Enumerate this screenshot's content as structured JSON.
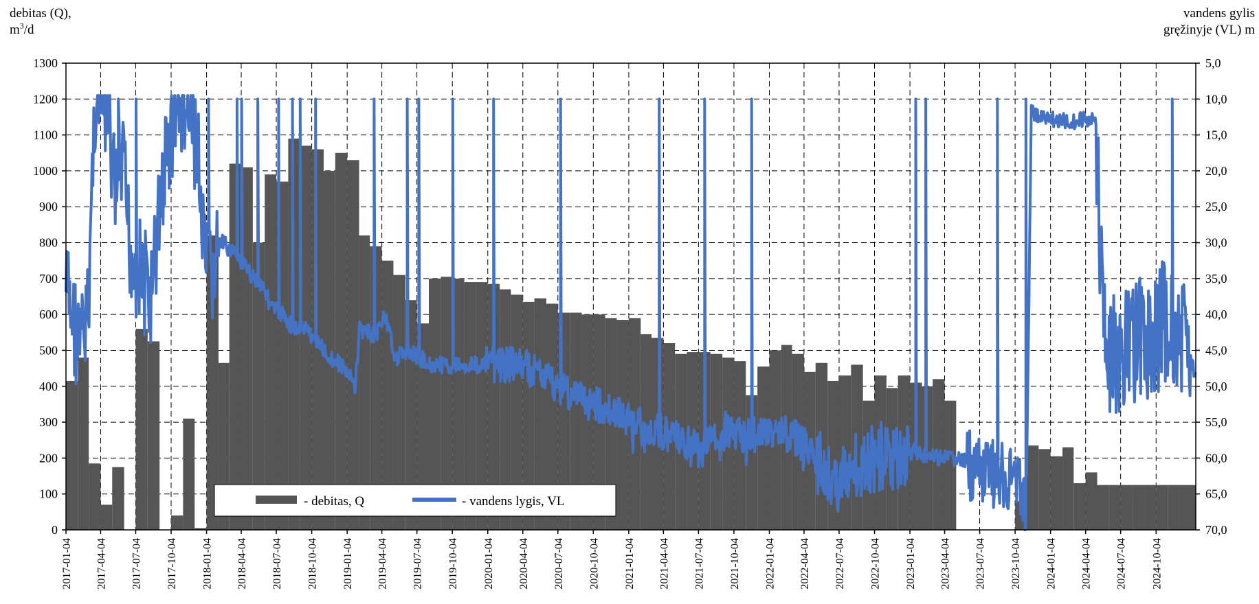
{
  "y_left_title_line1": "debitas (Q),",
  "y_left_title_unit_base": "m",
  "y_left_title_unit_sup": "3",
  "y_left_title_unit_tail": "/d",
  "y_right_title_line1": "vandens gylis",
  "y_right_title_line2": "gręžinyje (VL) m",
  "chart_data": {
    "type": "bar",
    "title": "",
    "x_ticks": [
      "2017-01-04",
      "2017-04-04",
      "2017-07-04",
      "2017-10-04",
      "2018-01-04",
      "2018-04-04",
      "2018-07-04",
      "2018-10-04",
      "2019-01-04",
      "2019-04-04",
      "2019-07-04",
      "2019-10-04",
      "2020-01-04",
      "2020-04-04",
      "2020-07-04",
      "2020-10-04",
      "2021-01-04",
      "2021-04-04",
      "2021-07-04",
      "2021-10-04",
      "2022-01-04",
      "2022-04-04",
      "2022-07-04",
      "2022-10-04",
      "2023-01-04",
      "2023-04-04",
      "2023-07-04",
      "2023-10-04",
      "2024-01-04",
      "2024-04-04",
      "2024-07-04",
      "2024-10-04"
    ],
    "x_range": [
      "2017-01-04",
      "2025-01-15"
    ],
    "y_left": {
      "label": "debitas (Q), m3/d",
      "ylim": [
        0,
        1300
      ],
      "ticks": [
        0,
        100,
        200,
        300,
        400,
        500,
        600,
        700,
        800,
        900,
        1000,
        1100,
        1200,
        1300
      ]
    },
    "y_right": {
      "label": "vandens gylis gręžinyje (VL) m",
      "ylim": [
        5.0,
        70.0
      ],
      "inverted": true,
      "ticks": [
        "5,0",
        "10,0",
        "15,0",
        "20,0",
        "25,0",
        "30,0",
        "35,0",
        "40,0",
        "45,0",
        "50,0",
        "55,0",
        "60,0",
        "65,0",
        "70,0"
      ]
    },
    "grid": true,
    "legend_position": "bottom-left",
    "series": [
      {
        "name": "- debitas, Q",
        "kind": "bar",
        "color": "#555555",
        "start": [
          "2017-01-04",
          "2017-02-04",
          "2017-03-04",
          "2017-04-04",
          "2017-05-04",
          "2017-06-04",
          "2017-07-04",
          "2017-08-04",
          "2017-09-04",
          "2017-10-04",
          "2017-11-04",
          "2017-12-04",
          "2018-01-04",
          "2018-02-04",
          "2018-03-04",
          "2018-04-04",
          "2018-05-04",
          "2018-06-04",
          "2018-07-04",
          "2018-08-04",
          "2018-09-04",
          "2018-10-04",
          "2018-11-04",
          "2018-12-04",
          "2019-01-04",
          "2019-02-04",
          "2019-03-04",
          "2019-04-04",
          "2019-05-04",
          "2019-06-04",
          "2019-07-04",
          "2019-08-04",
          "2019-09-04",
          "2019-10-04",
          "2019-11-04",
          "2019-12-04",
          "2020-01-04",
          "2020-02-04",
          "2020-03-04",
          "2020-04-04",
          "2020-05-04",
          "2020-06-04",
          "2020-07-04",
          "2020-08-04",
          "2020-09-04",
          "2020-10-04",
          "2020-11-04",
          "2020-12-04",
          "2021-01-04",
          "2021-02-04",
          "2021-03-04",
          "2021-04-04",
          "2021-05-04",
          "2021-06-04",
          "2021-07-04",
          "2021-08-04",
          "2021-09-04",
          "2021-10-04",
          "2021-11-04",
          "2021-12-04",
          "2022-01-04",
          "2022-02-04",
          "2022-03-04",
          "2022-04-04",
          "2022-05-04",
          "2022-06-04",
          "2022-07-04",
          "2022-08-04",
          "2022-09-04",
          "2022-10-04",
          "2022-11-04",
          "2022-12-04",
          "2023-01-04",
          "2023-02-04",
          "2023-03-04",
          "2023-04-04",
          "2023-05-04",
          "2023-06-04",
          "2023-07-04",
          "2023-08-04",
          "2023-09-04",
          "2023-10-04",
          "2023-11-04",
          "2023-12-04",
          "2024-01-04",
          "2024-02-04",
          "2024-03-04",
          "2024-04-04",
          "2024-05-04",
          "2024-06-04",
          "2024-07-04",
          "2024-08-04",
          "2024-09-04",
          "2024-10-04",
          "2024-11-04",
          "2024-12-04"
        ],
        "values": [
          415,
          480,
          185,
          70,
          175,
          0,
          560,
          525,
          0,
          40,
          310,
          5,
          820,
          465,
          1020,
          1010,
          800,
          990,
          970,
          1090,
          1070,
          1060,
          1000,
          1050,
          1030,
          820,
          790,
          750,
          710,
          640,
          575,
          700,
          705,
          700,
          690,
          690,
          685,
          670,
          655,
          635,
          645,
          630,
          605,
          605,
          600,
          600,
          590,
          585,
          590,
          545,
          535,
          520,
          490,
          495,
          495,
          490,
          480,
          470,
          375,
          455,
          500,
          515,
          490,
          440,
          465,
          415,
          430,
          460,
          360,
          430,
          395,
          430,
          410,
          400,
          420,
          360,
          0,
          0,
          0,
          0,
          0,
          80,
          235,
          225,
          205,
          230,
          130,
          160,
          125,
          125,
          125,
          125,
          125,
          125,
          125,
          125
        ]
      },
      {
        "name": "- vandens lygis, VL",
        "kind": "line",
        "color": "#4472c4",
        "axis": "right"
      }
    ]
  }
}
